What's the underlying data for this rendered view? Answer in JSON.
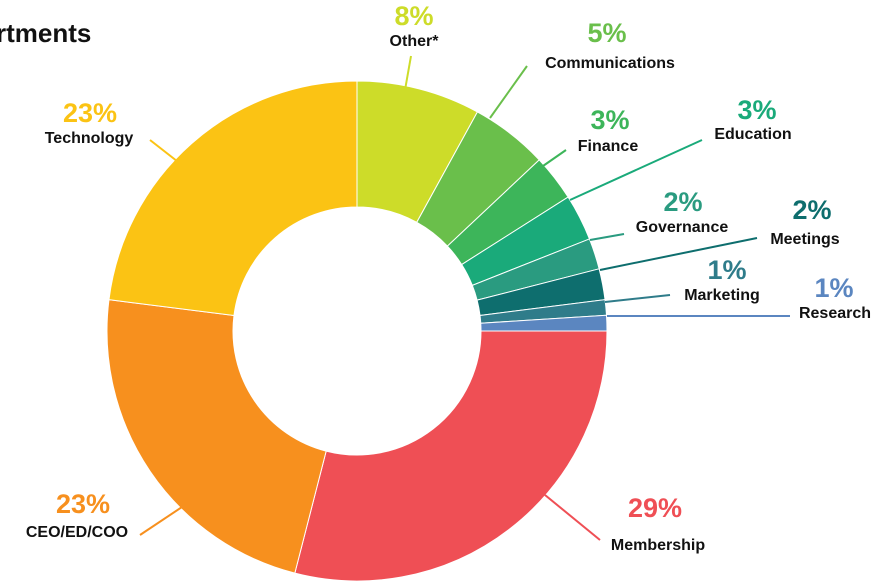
{
  "chart_data": {
    "type": "donut",
    "title": "rtments",
    "categories": [
      "Other*",
      "Communications",
      "Finance",
      "Education",
      "Governance",
      "Meetings",
      "Marketing",
      "Research",
      "Membership",
      "CEO/ED/COO",
      "Technology"
    ],
    "values": [
      8,
      5,
      3,
      3,
      2,
      2,
      1,
      1,
      29,
      23,
      23
    ],
    "value_labels": [
      "8%",
      "5%",
      "3%",
      "3%",
      "2%",
      "2%",
      "1%",
      "1%",
      "29%",
      "23%",
      "23%"
    ],
    "colors": [
      "#cddc29",
      "#6abf4b",
      "#3db55a",
      "#1aaa7a",
      "#2a9b80",
      "#0e6e6e",
      "#2f7c8a",
      "#5b86c0",
      "#ef4f55",
      "#f7901e",
      "#fbc314"
    ]
  }
}
